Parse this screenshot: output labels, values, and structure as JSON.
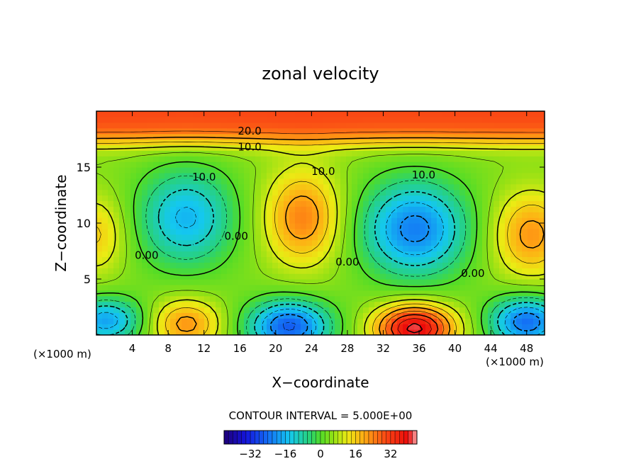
{
  "chart_data": {
    "type": "heatmap",
    "title": "zonal velocity",
    "xlabel": "X−coordinate",
    "ylabel": "Z−coordinate",
    "x_unit_left": "(×1000 m)",
    "x_unit_right": "(×1000 m)",
    "xlim": [
      0,
      50
    ],
    "ylim": [
      0,
      20
    ],
    "x_ticks": [
      4,
      8,
      12,
      16,
      20,
      24,
      28,
      32,
      36,
      40,
      44,
      48
    ],
    "y_ticks": [
      5,
      10,
      15
    ],
    "contour_interval_text": "CONTOUR INTERVAL = 5.000E+00",
    "contour_labels": [
      {
        "text": "20.0",
        "x": 17.1,
        "z": 17.9
      },
      {
        "text": "10.0",
        "x": 17.1,
        "z": 16.5
      },
      {
        "text": "10.0",
        "x": 12.0,
        "z": 13.8
      },
      {
        "text": "10.0",
        "x": 25.3,
        "z": 14.3
      },
      {
        "text": "10.0",
        "x": 36.5,
        "z": 14.0
      },
      {
        "text": "0.00",
        "x": 15.6,
        "z": 8.5
      },
      {
        "text": "0.00",
        "x": 5.6,
        "z": 6.8
      },
      {
        "text": "0.00",
        "x": 28.0,
        "z": 6.2
      },
      {
        "text": "0.00",
        "x": 42.0,
        "z": 5.2
      }
    ],
    "colorbar": {
      "min": -44,
      "max": 44,
      "tick_labels": [
        "−32",
        "−16",
        "0",
        "16",
        "32"
      ],
      "tick_values": [
        -32,
        -16,
        0,
        16,
        32
      ]
    }
  }
}
